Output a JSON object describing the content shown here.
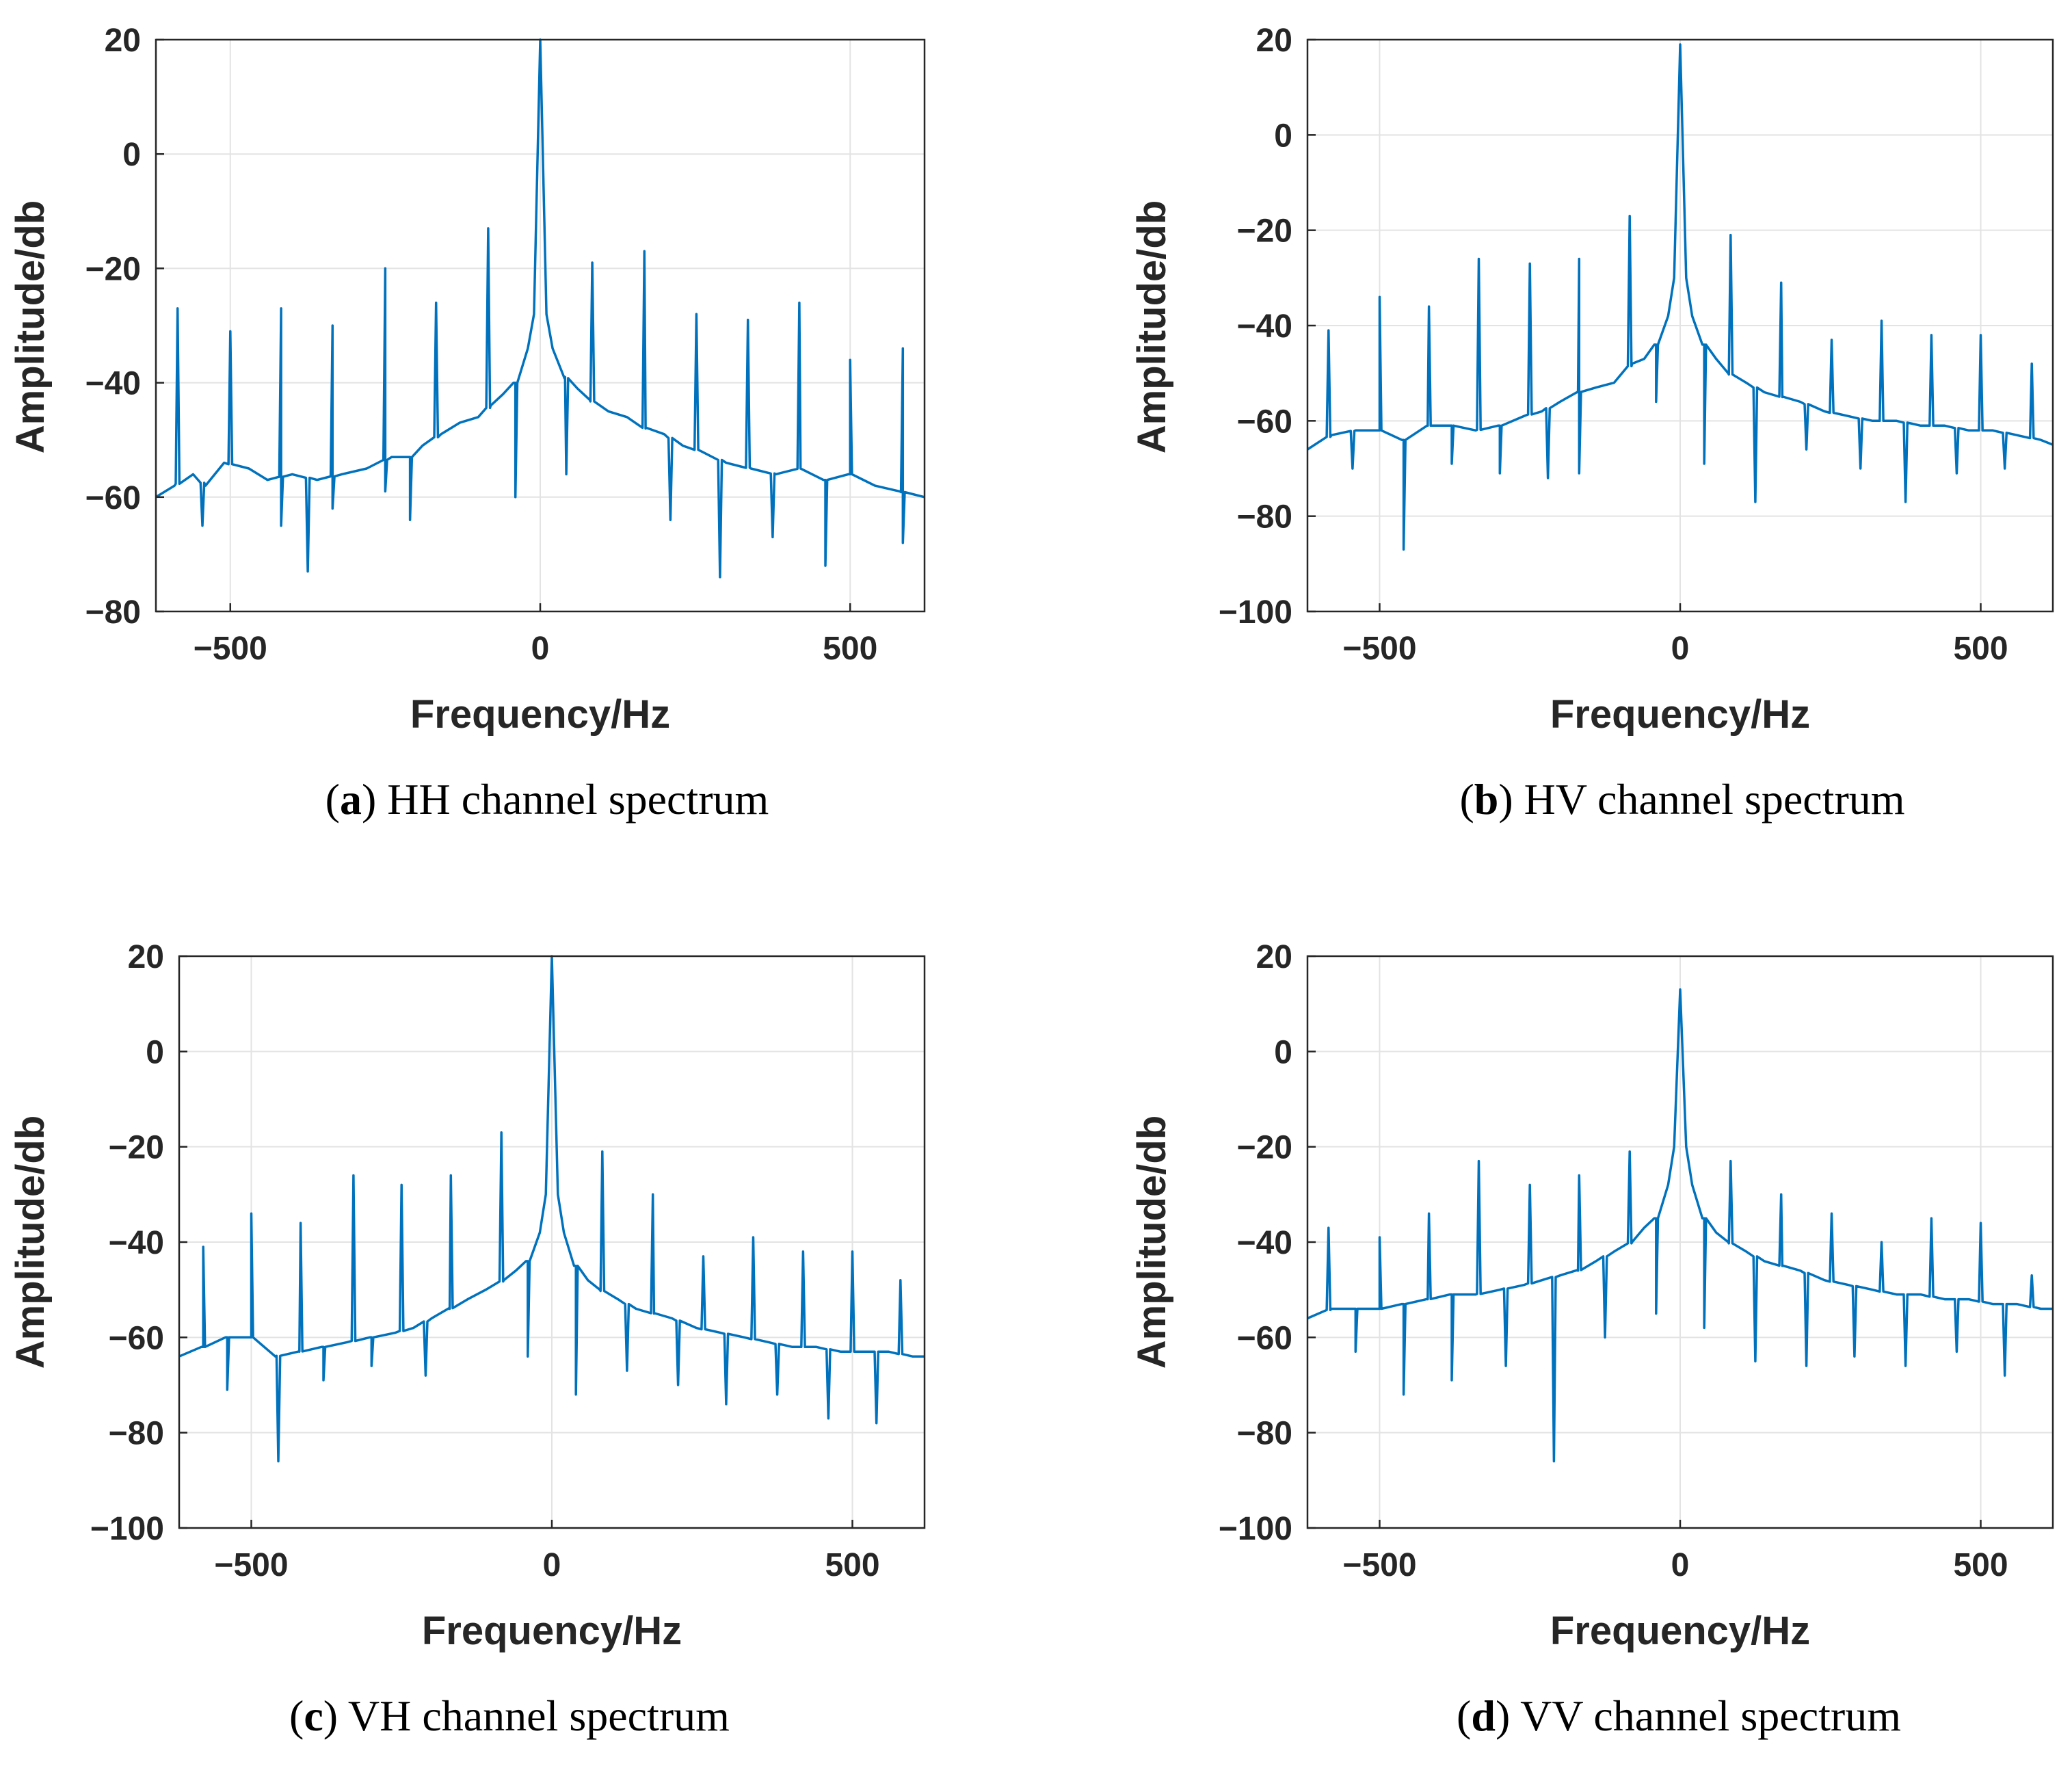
{
  "figure": {
    "colors": {
      "line": "#0072BD",
      "grid": "#e3e3e3",
      "axis": "#262626"
    }
  },
  "chart_data": [
    {
      "id": "a",
      "type": "line",
      "caption_letter": "a",
      "caption_text": " HH channel spectrum",
      "xlabel": "Frequency/Hz",
      "ylabel": "Amplitude/db",
      "xlim": [
        -620,
        620
      ],
      "ylim": [
        -80,
        20
      ],
      "xticks": [
        -500,
        0,
        500
      ],
      "yticks": [
        20,
        0,
        -20,
        -40,
        -60,
        -80
      ],
      "grid": true,
      "peak": {
        "x": 0,
        "y": 20
      },
      "baseline_points": [
        [
          -620,
          -60
        ],
        [
          -590,
          -58
        ],
        [
          -560,
          -56
        ],
        [
          -540,
          -58
        ],
        [
          -510,
          -54
        ],
        [
          -470,
          -55
        ],
        [
          -440,
          -57
        ],
        [
          -400,
          -56
        ],
        [
          -360,
          -57
        ],
        [
          -320,
          -56
        ],
        [
          -280,
          -55
        ],
        [
          -240,
          -53
        ],
        [
          -210,
          -53
        ],
        [
          -190,
          -51
        ],
        [
          -160,
          -49
        ],
        [
          -130,
          -47
        ],
        [
          -100,
          -46
        ],
        [
          -80,
          -44
        ],
        [
          -60,
          -42
        ],
        [
          -40,
          -40
        ],
        [
          -20,
          -34
        ],
        [
          -10,
          -28
        ],
        [
          0,
          20
        ],
        [
          10,
          -28
        ],
        [
          20,
          -34
        ],
        [
          40,
          -39
        ],
        [
          60,
          -41
        ],
        [
          80,
          -43
        ],
        [
          110,
          -45
        ],
        [
          140,
          -46
        ],
        [
          170,
          -48
        ],
        [
          200,
          -49
        ],
        [
          230,
          -51
        ],
        [
          260,
          -52
        ],
        [
          300,
          -54
        ],
        [
          340,
          -55
        ],
        [
          380,
          -56
        ],
        [
          420,
          -55
        ],
        [
          460,
          -57
        ],
        [
          500,
          -56
        ],
        [
          540,
          -58
        ],
        [
          580,
          -59
        ],
        [
          620,
          -60
        ]
      ],
      "spikes_up": [
        [
          -585,
          -27
        ],
        [
          -500,
          -31
        ],
        [
          -418,
          -27
        ],
        [
          -335,
          -30
        ],
        [
          -250,
          -20
        ],
        [
          -168,
          -26
        ],
        [
          -84,
          -13
        ],
        [
          84,
          -19
        ],
        [
          168,
          -17
        ],
        [
          252,
          -28
        ],
        [
          335,
          -29
        ],
        [
          418,
          -26
        ],
        [
          500,
          -36
        ],
        [
          585,
          -34
        ]
      ],
      "spikes_down": [
        [
          -545,
          -65
        ],
        [
          -418,
          -65
        ],
        [
          -375,
          -73
        ],
        [
          -335,
          -62
        ],
        [
          -250,
          -59
        ],
        [
          -210,
          -64
        ],
        [
          -40,
          -60
        ],
        [
          42,
          -56
        ],
        [
          210,
          -64
        ],
        [
          290,
          -74
        ],
        [
          375,
          -67
        ],
        [
          460,
          -72
        ],
        [
          585,
          -68
        ]
      ]
    },
    {
      "id": "b",
      "type": "line",
      "caption_letter": "b",
      "caption_text": " HV channel spectrum",
      "xlabel": "Frequency/Hz",
      "ylabel": "Amplitude/db",
      "xlim": [
        -620,
        620
      ],
      "ylim": [
        -100,
        20
      ],
      "xticks": [
        -500,
        0,
        500
      ],
      "yticks": [
        20,
        0,
        -20,
        -40,
        -60,
        -80,
        -100
      ],
      "grid": true,
      "peak": {
        "x": 0,
        "y": 19
      },
      "baseline_points": [
        [
          -620,
          -66
        ],
        [
          -580,
          -63
        ],
        [
          -540,
          -62
        ],
        [
          -500,
          -62
        ],
        [
          -460,
          -64
        ],
        [
          -420,
          -61
        ],
        [
          -380,
          -61
        ],
        [
          -340,
          -62
        ],
        [
          -300,
          -61
        ],
        [
          -260,
          -59
        ],
        [
          -230,
          -58
        ],
        [
          -200,
          -56
        ],
        [
          -170,
          -54
        ],
        [
          -140,
          -53
        ],
        [
          -110,
          -52
        ],
        [
          -80,
          -48
        ],
        [
          -60,
          -47
        ],
        [
          -40,
          -44
        ],
        [
          -20,
          -38
        ],
        [
          -10,
          -30
        ],
        [
          0,
          19
        ],
        [
          10,
          -30
        ],
        [
          20,
          -38
        ],
        [
          40,
          -44
        ],
        [
          60,
          -47
        ],
        [
          80,
          -50
        ],
        [
          110,
          -52
        ],
        [
          140,
          -54
        ],
        [
          170,
          -55
        ],
        [
          200,
          -56
        ],
        [
          240,
          -58
        ],
        [
          280,
          -59
        ],
        [
          320,
          -60
        ],
        [
          360,
          -60
        ],
        [
          400,
          -61
        ],
        [
          440,
          -61
        ],
        [
          480,
          -62
        ],
        [
          520,
          -62
        ],
        [
          560,
          -63
        ],
        [
          600,
          -64
        ],
        [
          620,
          -65
        ]
      ],
      "spikes_up": [
        [
          -585,
          -41
        ],
        [
          -500,
          -34
        ],
        [
          -418,
          -36
        ],
        [
          -335,
          -26
        ],
        [
          -250,
          -27
        ],
        [
          -168,
          -26
        ],
        [
          -84,
          -17
        ],
        [
          84,
          -21
        ],
        [
          168,
          -31
        ],
        [
          252,
          -43
        ],
        [
          335,
          -39
        ],
        [
          418,
          -42
        ],
        [
          500,
          -42
        ],
        [
          585,
          -48
        ]
      ],
      "spikes_down": [
        [
          -545,
          -70
        ],
        [
          -460,
          -87
        ],
        [
          -380,
          -69
        ],
        [
          -300,
          -71
        ],
        [
          -220,
          -72
        ],
        [
          -168,
          -71
        ],
        [
          -40,
          -56
        ],
        [
          40,
          -69
        ],
        [
          125,
          -77
        ],
        [
          210,
          -66
        ],
        [
          300,
          -70
        ],
        [
          375,
          -77
        ],
        [
          460,
          -71
        ],
        [
          540,
          -70
        ]
      ]
    },
    {
      "id": "c",
      "type": "line",
      "caption_letter": "c",
      "caption_text": " VH channel spectrum",
      "xlabel": "Frequency/Hz",
      "ylabel": "Amplitude/db",
      "xlim": [
        -620,
        620
      ],
      "ylim": [
        -100,
        20
      ],
      "xticks": [
        -500,
        0,
        500
      ],
      "yticks": [
        20,
        0,
        -20,
        -40,
        -60,
        -80,
        -100
      ],
      "grid": true,
      "peak": {
        "x": 0,
        "y": 20
      },
      "baseline_points": [
        [
          -620,
          -64
        ],
        [
          -580,
          -62
        ],
        [
          -540,
          -60
        ],
        [
          -500,
          -60
        ],
        [
          -460,
          -64
        ],
        [
          -420,
          -63
        ],
        [
          -380,
          -62
        ],
        [
          -340,
          -61
        ],
        [
          -300,
          -60
        ],
        [
          -260,
          -59
        ],
        [
          -230,
          -58
        ],
        [
          -200,
          -56
        ],
        [
          -170,
          -54
        ],
        [
          -140,
          -52
        ],
        [
          -110,
          -50
        ],
        [
          -80,
          -48
        ],
        [
          -60,
          -46
        ],
        [
          -40,
          -44
        ],
        [
          -20,
          -38
        ],
        [
          -10,
          -30
        ],
        [
          0,
          20
        ],
        [
          10,
          -30
        ],
        [
          20,
          -38
        ],
        [
          40,
          -45
        ],
        [
          60,
          -48
        ],
        [
          80,
          -50
        ],
        [
          110,
          -52
        ],
        [
          140,
          -54
        ],
        [
          170,
          -55
        ],
        [
          200,
          -56
        ],
        [
          240,
          -58
        ],
        [
          280,
          -59
        ],
        [
          320,
          -60
        ],
        [
          360,
          -61
        ],
        [
          400,
          -62
        ],
        [
          440,
          -62
        ],
        [
          480,
          -63
        ],
        [
          520,
          -63
        ],
        [
          560,
          -63
        ],
        [
          600,
          -64
        ],
        [
          620,
          -64
        ]
      ],
      "spikes_up": [
        [
          -580,
          -41
        ],
        [
          -500,
          -34
        ],
        [
          -418,
          -36
        ],
        [
          -330,
          -26
        ],
        [
          -250,
          -28
        ],
        [
          -168,
          -26
        ],
        [
          -84,
          -17
        ],
        [
          84,
          -21
        ],
        [
          168,
          -30
        ],
        [
          252,
          -43
        ],
        [
          335,
          -39
        ],
        [
          418,
          -42
        ],
        [
          500,
          -42
        ],
        [
          580,
          -48
        ]
      ],
      "spikes_down": [
        [
          -540,
          -71
        ],
        [
          -455,
          -86
        ],
        [
          -380,
          -69
        ],
        [
          -300,
          -66
        ],
        [
          -210,
          -68
        ],
        [
          -40,
          -64
        ],
        [
          40,
          -72
        ],
        [
          125,
          -67
        ],
        [
          210,
          -70
        ],
        [
          290,
          -74
        ],
        [
          375,
          -72
        ],
        [
          460,
          -77
        ],
        [
          540,
          -78
        ]
      ]
    },
    {
      "id": "d",
      "type": "line",
      "caption_letter": "d",
      "caption_text": " VV channel spectrum",
      "xlabel": "Frequency/Hz",
      "ylabel": "Amplitude/db",
      "xlim": [
        -620,
        620
      ],
      "ylim": [
        -100,
        20
      ],
      "xticks": [
        -500,
        0,
        500
      ],
      "yticks": [
        20,
        0,
        -20,
        -40,
        -60,
        -80,
        -100
      ],
      "grid": true,
      "peak": {
        "x": 0,
        "y": 13
      },
      "baseline_points": [
        [
          -620,
          -56
        ],
        [
          -580,
          -54
        ],
        [
          -540,
          -54
        ],
        [
          -500,
          -54
        ],
        [
          -460,
          -53
        ],
        [
          -420,
          -52
        ],
        [
          -380,
          -51
        ],
        [
          -340,
          -51
        ],
        [
          -300,
          -50
        ],
        [
          -260,
          -49
        ],
        [
          -230,
          -48
        ],
        [
          -200,
          -47
        ],
        [
          -170,
          -46
        ],
        [
          -140,
          -44
        ],
        [
          -110,
          -42
        ],
        [
          -80,
          -40
        ],
        [
          -60,
          -37
        ],
        [
          -40,
          -35
        ],
        [
          -20,
          -28
        ],
        [
          -10,
          -20
        ],
        [
          0,
          13
        ],
        [
          10,
          -20
        ],
        [
          20,
          -28
        ],
        [
          40,
          -35
        ],
        [
          60,
          -38
        ],
        [
          80,
          -40
        ],
        [
          110,
          -42
        ],
        [
          140,
          -44
        ],
        [
          170,
          -45
        ],
        [
          200,
          -46
        ],
        [
          240,
          -48
        ],
        [
          280,
          -49
        ],
        [
          320,
          -50
        ],
        [
          360,
          -51
        ],
        [
          400,
          -51
        ],
        [
          440,
          -52
        ],
        [
          480,
          -52
        ],
        [
          520,
          -53
        ],
        [
          560,
          -53
        ],
        [
          600,
          -54
        ],
        [
          620,
          -54
        ]
      ],
      "spikes_up": [
        [
          -585,
          -37
        ],
        [
          -500,
          -39
        ],
        [
          -418,
          -34
        ],
        [
          -335,
          -23
        ],
        [
          -250,
          -28
        ],
        [
          -168,
          -26
        ],
        [
          -84,
          -21
        ],
        [
          84,
          -23
        ],
        [
          168,
          -30
        ],
        [
          252,
          -34
        ],
        [
          335,
          -40
        ],
        [
          418,
          -35
        ],
        [
          500,
          -36
        ],
        [
          585,
          -47
        ]
      ],
      "spikes_down": [
        [
          -540,
          -63
        ],
        [
          -460,
          -72
        ],
        [
          -380,
          -69
        ],
        [
          -290,
          -66
        ],
        [
          -210,
          -86
        ],
        [
          -125,
          -60
        ],
        [
          -40,
          -55
        ],
        [
          40,
          -58
        ],
        [
          125,
          -65
        ],
        [
          210,
          -66
        ],
        [
          290,
          -64
        ],
        [
          375,
          -66
        ],
        [
          460,
          -63
        ],
        [
          540,
          -68
        ]
      ]
    }
  ]
}
